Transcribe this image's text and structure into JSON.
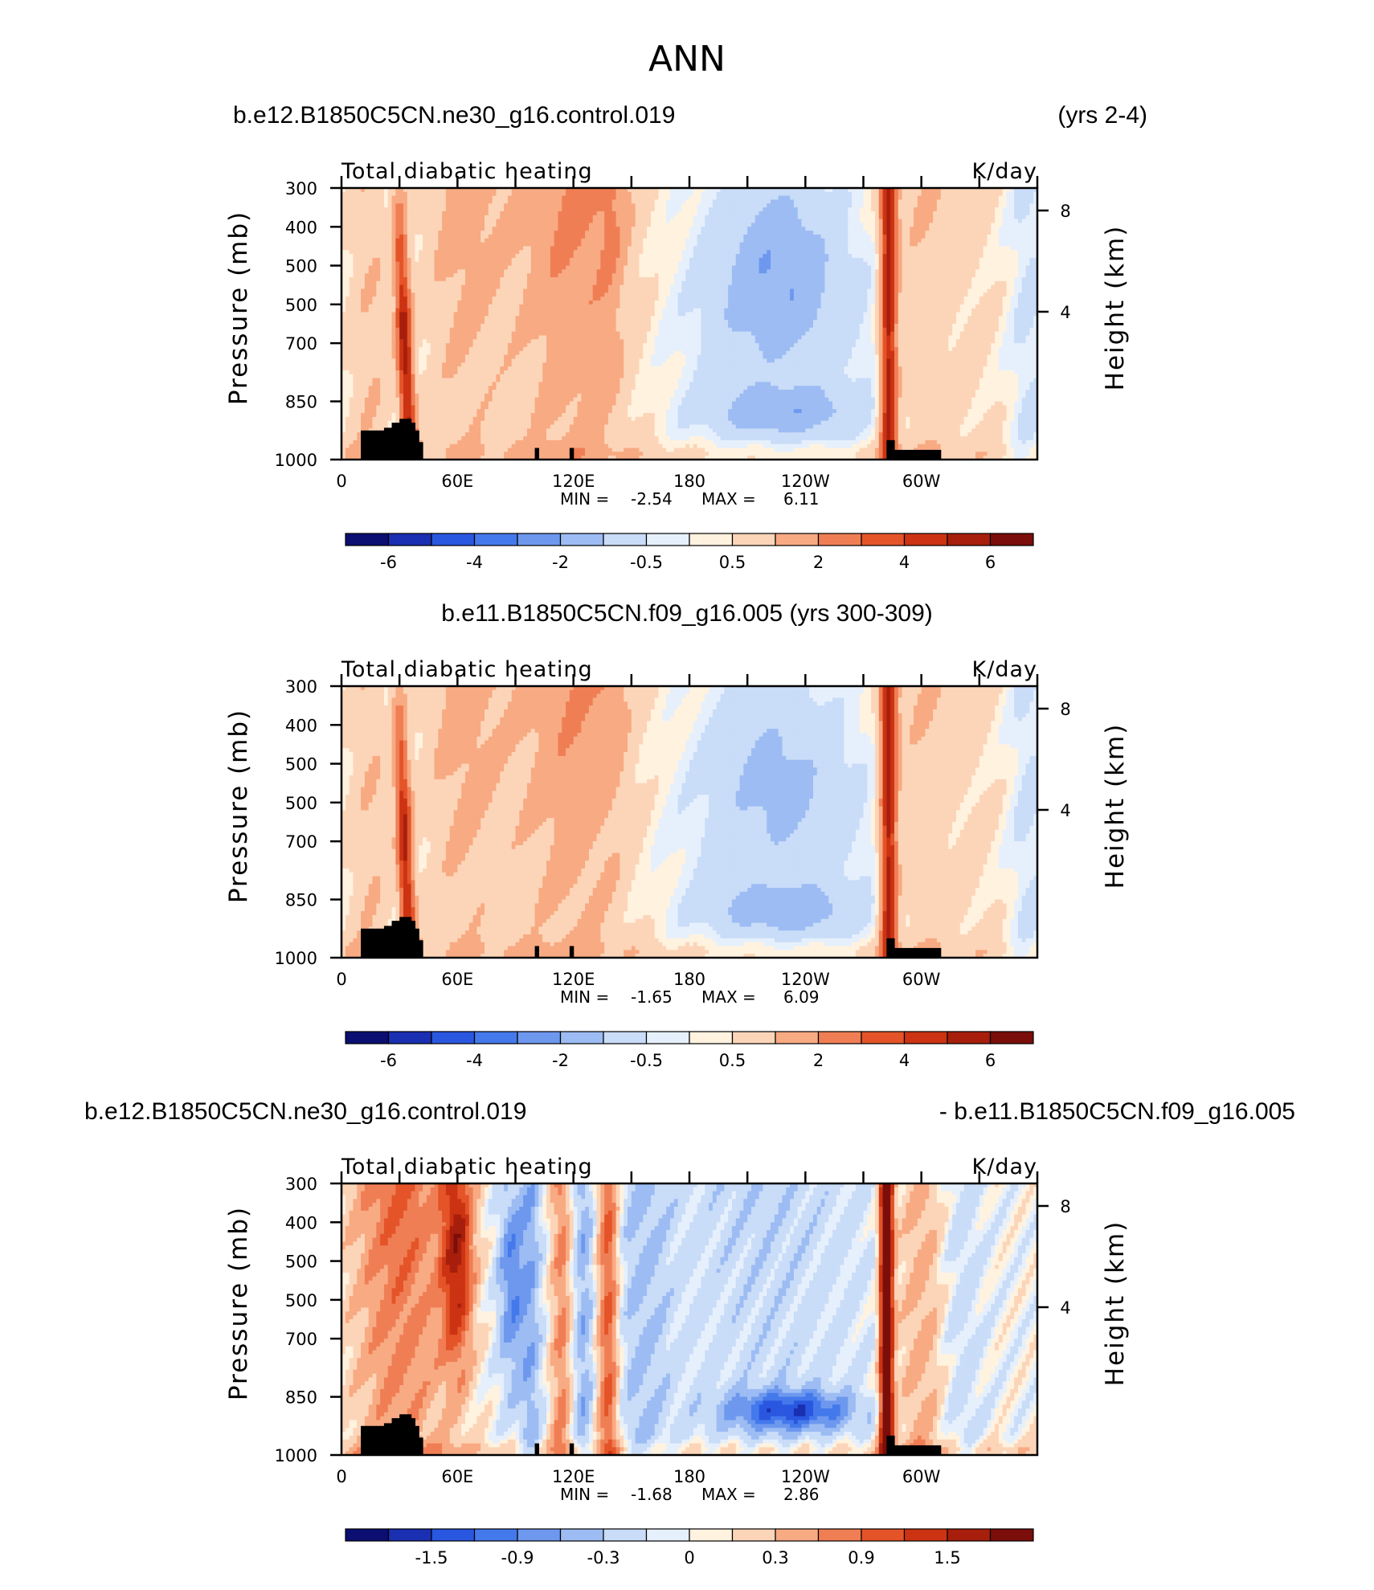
{
  "figure": {
    "title": "ANN"
  },
  "colorscales": {
    "full": [
      "#0b0f72",
      "#1a2fb1",
      "#2a57e0",
      "#4479ec",
      "#6d98ee",
      "#9cbcf3",
      "#c9dcf8",
      "#e6f0fc",
      "#fff2df",
      "#fcd5b8",
      "#f8aa83",
      "#f07e54",
      "#e45428",
      "#cc3312",
      "#a71f0c",
      "#7b0e0a"
    ],
    "diff": [
      "#0b0f72",
      "#1a2fb1",
      "#2a57e0",
      "#4479ec",
      "#6d98ee",
      "#9cbcf3",
      "#c9dcf8",
      "#e6f0fc",
      "#fff2df",
      "#fcd5b8",
      "#f8aa83",
      "#f07e54",
      "#e45428",
      "#cc3312",
      "#a71f0c",
      "#7b0e0a"
    ],
    "land": "#000000"
  },
  "chart_data": [
    {
      "type": "heatmap",
      "panel_title_left": "b.e12.B1850C5CN.ne30_g16.control.019",
      "panel_title_right": "(yrs 2-4)",
      "subtitle_left": "Total diabatic heating",
      "subtitle_right": "K/day",
      "xlabel": "",
      "ylabel": "Pressure (mb)",
      "y2label": "Height (km)",
      "xlim": [
        0,
        360
      ],
      "ylim": [
        300,
        1000
      ],
      "x_ticks": [
        "0",
        "60E",
        "120E",
        "180",
        "120W",
        "60W"
      ],
      "y_ticks": [
        "300",
        "400",
        "500",
        "500",
        "700",
        "850",
        "1000"
      ],
      "y2_ticks": [
        "8",
        "4"
      ],
      "min_label": "MIN =",
      "min_value": "-2.54",
      "max_label": "MAX =",
      "max_value": "6.11",
      "colorbar_labels": [
        "-6",
        "-4",
        "-2",
        "-0.5",
        "0.5",
        "2",
        "4",
        "6"
      ],
      "min": -2.54,
      "max": 6.11,
      "seed": 1
    },
    {
      "type": "heatmap",
      "panel_title_center": "b.e11.B1850C5CN.f09_g16.005 (yrs 300-309)",
      "subtitle_left": "Total diabatic heating",
      "subtitle_right": "K/day",
      "ylabel": "Pressure (mb)",
      "y2label": "Height (km)",
      "xlim": [
        0,
        360
      ],
      "ylim": [
        300,
        1000
      ],
      "x_ticks": [
        "0",
        "60E",
        "120E",
        "180",
        "120W",
        "60W"
      ],
      "y_ticks": [
        "300",
        "400",
        "500",
        "500",
        "700",
        "850",
        "1000"
      ],
      "y2_ticks": [
        "8",
        "4"
      ],
      "min_label": "MIN =",
      "min_value": "-1.65",
      "max_label": "MAX =",
      "max_value": "6.09",
      "colorbar_labels": [
        "-6",
        "-4",
        "-2",
        "-0.5",
        "0.5",
        "2",
        "4",
        "6"
      ],
      "min": -1.65,
      "max": 6.09,
      "seed": 2
    },
    {
      "type": "heatmap",
      "panel_title_left": "b.e12.B1850C5CN.ne30_g16.control.019",
      "panel_title_right": "- b.e11.B1850C5CN.f09_g16.005",
      "subtitle_left": "Total diabatic heating",
      "subtitle_right": "K/day",
      "ylabel": "Pressure (mb)",
      "y2label": "Height (km)",
      "xlim": [
        0,
        360
      ],
      "ylim": [
        300,
        1000
      ],
      "x_ticks": [
        "0",
        "60E",
        "120E",
        "180",
        "120W",
        "60W"
      ],
      "y_ticks": [
        "300",
        "400",
        "500",
        "500",
        "700",
        "850",
        "1000"
      ],
      "y2_ticks": [
        "8",
        "4"
      ],
      "min_label": "MIN =",
      "min_value": "-1.68",
      "max_label": "MAX =",
      "max_value": "2.86",
      "colorbar_labels": [
        "-1.5",
        "-0.9",
        "-0.3",
        "0",
        "0.3",
        "0.9",
        "1.5"
      ],
      "min": -1.68,
      "max": 2.86,
      "seed": 3
    }
  ]
}
